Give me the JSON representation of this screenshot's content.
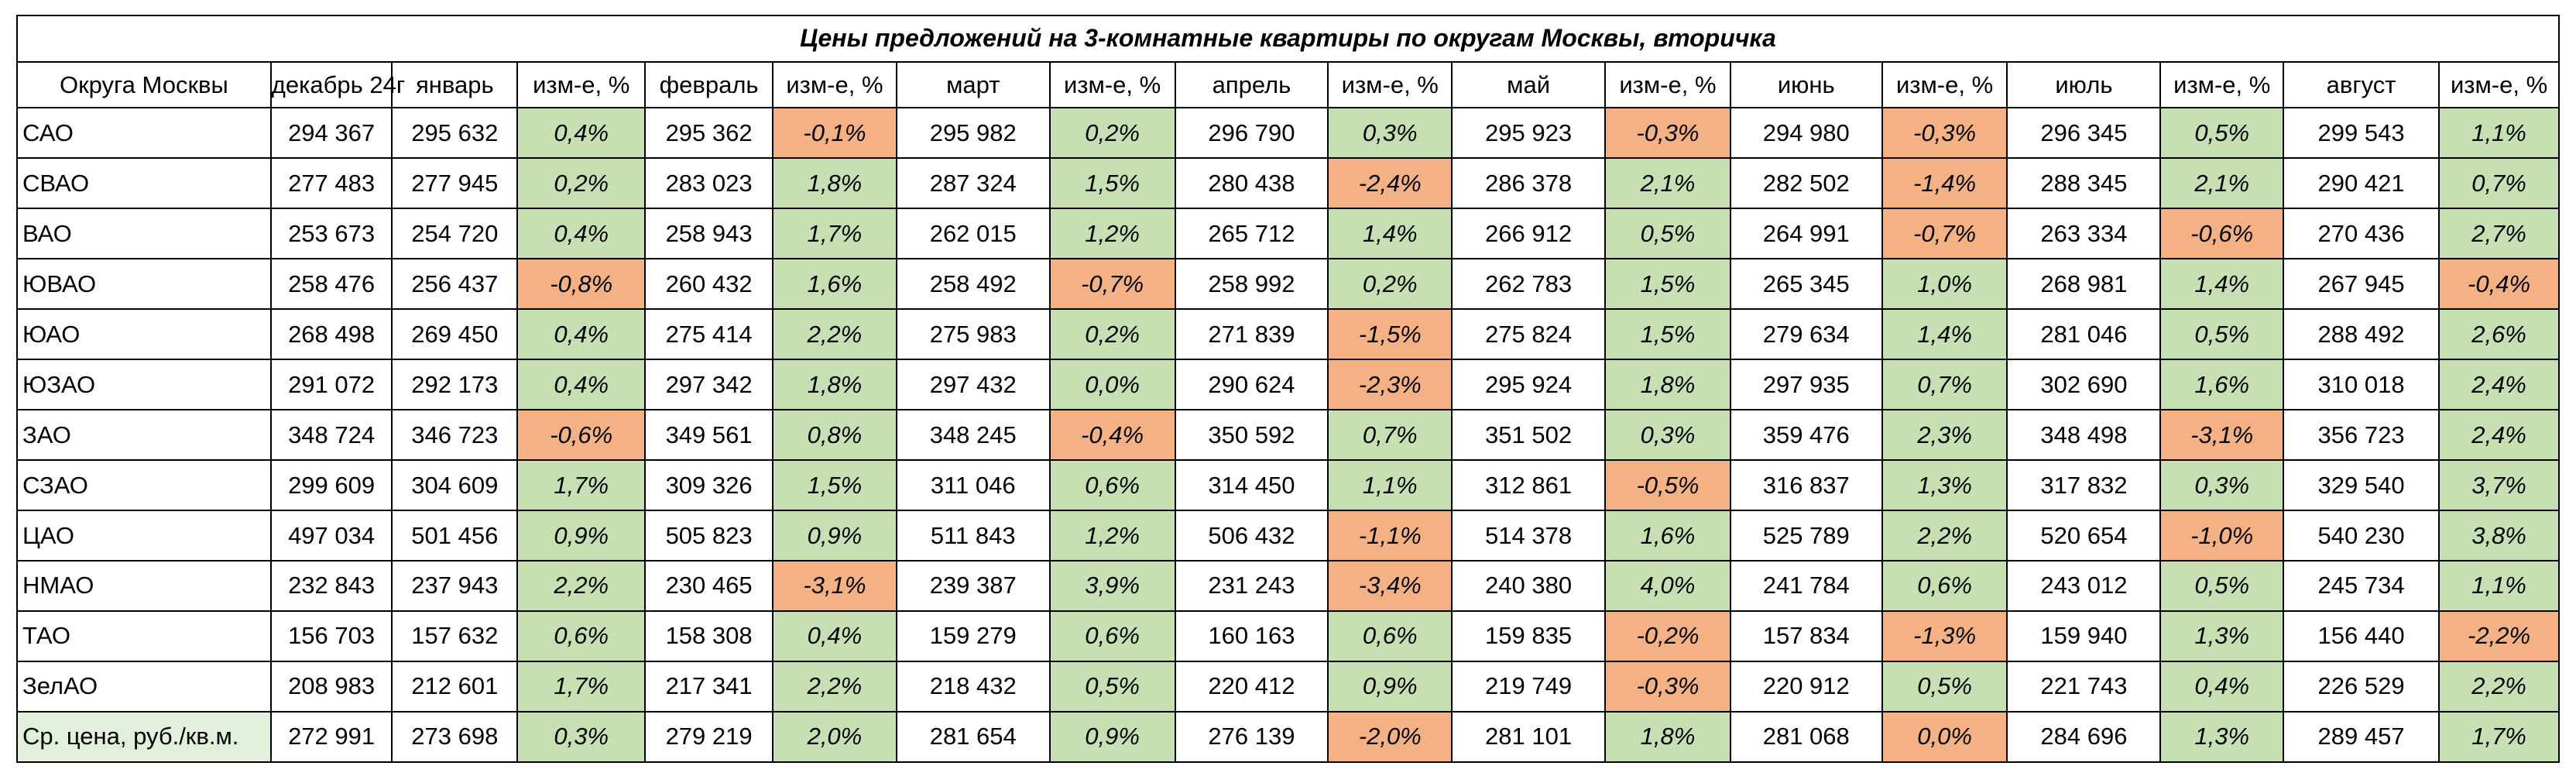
{
  "title": "Цены предложений на 3-комнатные квартиры по округам Москвы, вторичка",
  "headers": [
    "Округа Москвы",
    "декабрь 24г",
    "январь",
    "изм-е, %",
    "февраль",
    "изм-е, %",
    "март",
    "изм-е, %",
    "апрель",
    "изм-е, %",
    "май",
    "изм-е, %",
    "июнь",
    "изм-е, %",
    "июль",
    "изм-е, %",
    "август",
    "изм-е, %"
  ],
  "colors": {
    "positive": "#c6e0b4",
    "negative": "#f4b183",
    "zero": "#f4b183",
    "avg_label_bg": "#e2efda"
  },
  "rows": [
    {
      "name": "САО",
      "values": [
        "294 367",
        "295 632",
        "0,4%",
        "295 362",
        "-0,1%",
        "295 982",
        "0,2%",
        "296 790",
        "0,3%",
        "295 923",
        "-0,3%",
        "294 980",
        "-0,3%",
        "296 345",
        "0,5%",
        "299 543",
        "1,1%"
      ]
    },
    {
      "name": "СВАО",
      "values": [
        "277 483",
        "277 945",
        "0,2%",
        "283 023",
        "1,8%",
        "287 324",
        "1,5%",
        "280 438",
        "-2,4%",
        "286 378",
        "2,1%",
        "282 502",
        "-1,4%",
        "288 345",
        "2,1%",
        "290 421",
        "0,7%"
      ]
    },
    {
      "name": "ВАО",
      "values": [
        "253 673",
        "254 720",
        "0,4%",
        "258 943",
        "1,7%",
        "262 015",
        "1,2%",
        "265 712",
        "1,4%",
        "266 912",
        "0,5%",
        "264 991",
        "-0,7%",
        "263 334",
        "-0,6%",
        "270 436",
        "2,7%"
      ]
    },
    {
      "name": "ЮВАО",
      "values": [
        "258 476",
        "256 437",
        "-0,8%",
        "260 432",
        "1,6%",
        "258 492",
        "-0,7%",
        "258 992",
        "0,2%",
        "262 783",
        "1,5%",
        "265 345",
        "1,0%",
        "268 981",
        "1,4%",
        "267 945",
        "-0,4%"
      ]
    },
    {
      "name": "ЮАО",
      "values": [
        "268 498",
        "269 450",
        "0,4%",
        "275 414",
        "2,2%",
        "275 983",
        "0,2%",
        "271 839",
        "-1,5%",
        "275 824",
        "1,5%",
        "279 634",
        "1,4%",
        "281 046",
        "0,5%",
        "288 492",
        "2,6%"
      ]
    },
    {
      "name": "ЮЗАО",
      "values": [
        "291 072",
        "292 173",
        "0,4%",
        "297 342",
        "1,8%",
        "297 432",
        "0,0%",
        "290 624",
        "-2,3%",
        "295 924",
        "1,8%",
        "297 935",
        "0,7%",
        "302 690",
        "1,6%",
        "310 018",
        "2,4%"
      ]
    },
    {
      "name": "ЗАО",
      "values": [
        "348 724",
        "346 723",
        "-0,6%",
        "349 561",
        "0,8%",
        "348 245",
        "-0,4%",
        "350 592",
        "0,7%",
        "351 502",
        "0,3%",
        "359 476",
        "2,3%",
        "348 498",
        "-3,1%",
        "356 723",
        "2,4%"
      ]
    },
    {
      "name": "СЗАО",
      "values": [
        "299 609",
        "304 609",
        "1,7%",
        "309 326",
        "1,5%",
        "311 046",
        "0,6%",
        "314 450",
        "1,1%",
        "312 861",
        "-0,5%",
        "316 837",
        "1,3%",
        "317 832",
        "0,3%",
        "329 540",
        "3,7%"
      ]
    },
    {
      "name": "ЦАО",
      "values": [
        "497 034",
        "501 456",
        "0,9%",
        "505 823",
        "0,9%",
        "511 843",
        "1,2%",
        "506 432",
        "-1,1%",
        "514 378",
        "1,6%",
        "525 789",
        "2,2%",
        "520 654",
        "-1,0%",
        "540 230",
        "3,8%"
      ]
    },
    {
      "name": "НМАО",
      "values": [
        "232 843",
        "237 943",
        "2,2%",
        "230 465",
        "-3,1%",
        "239 387",
        "3,9%",
        "231 243",
        "-3,4%",
        "240 380",
        "4,0%",
        "241 784",
        "0,6%",
        "243 012",
        "0,5%",
        "245 734",
        "1,1%"
      ]
    },
    {
      "name": "ТАО",
      "values": [
        "156 703",
        "157 632",
        "0,6%",
        "158 308",
        "0,4%",
        "159 279",
        "0,6%",
        "160 163",
        "0,6%",
        "159 835",
        "-0,2%",
        "157 834",
        "-1,3%",
        "159 940",
        "1,3%",
        "156 440",
        "-2,2%"
      ]
    },
    {
      "name": "ЗелАО",
      "values": [
        "208 983",
        "212 601",
        "1,7%",
        "217 341",
        "2,2%",
        "218 432",
        "0,5%",
        "220 412",
        "0,9%",
        "219 749",
        "-0,3%",
        "220 912",
        "0,5%",
        "221 743",
        "0,4%",
        "226 529",
        "2,2%"
      ]
    },
    {
      "name": "Ср. цена, руб./кв.м.",
      "values": [
        "272 991",
        "273 698",
        "0,3%",
        "279 219",
        "2,0%",
        "281 654",
        "0,9%",
        "276 139",
        "-2,0%",
        "281 101",
        "1,8%",
        "281 068",
        "0,0%",
        "284 696",
        "1,3%",
        "289 457",
        "1,7%"
      ],
      "zero_pct_style": "negative"
    }
  ]
}
